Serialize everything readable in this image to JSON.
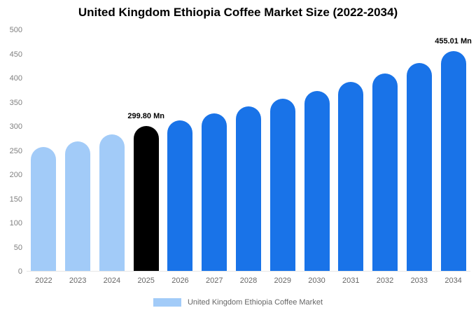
{
  "title": "United Kingdom Ethiopia Coffee Market Size (2022-2034)",
  "legend": {
    "label": "United Kingdom Ethiopia Coffee Market"
  },
  "colors": {
    "light": "#a2cbf8",
    "highlight": "#000000",
    "primary": "#1973e8",
    "axis_text": "#808080",
    "x_text": "#666666"
  },
  "chart_data": {
    "type": "bar",
    "title": "United Kingdom Ethiopia Coffee Market Size (2022-2034)",
    "xlabel": "",
    "ylabel": "",
    "ylim": [
      0,
      500
    ],
    "ytick_step": 50,
    "grid": false,
    "legend_position": "bottom",
    "categories": [
      "2022",
      "2023",
      "2024",
      "2025",
      "2026",
      "2027",
      "2028",
      "2029",
      "2030",
      "2031",
      "2032",
      "2033",
      "2034"
    ],
    "values": [
      256,
      268,
      283,
      299.8,
      312,
      326,
      341,
      357,
      373,
      391,
      409,
      430,
      455.01
    ],
    "bar_colors": [
      "light",
      "light",
      "light",
      "highlight",
      "primary",
      "primary",
      "primary",
      "primary",
      "primary",
      "primary",
      "primary",
      "primary",
      "primary"
    ],
    "data_labels": [
      null,
      null,
      null,
      "299.80 Mn",
      null,
      null,
      null,
      null,
      null,
      null,
      null,
      null,
      "455.01 Mn"
    ],
    "series_name": "United Kingdom Ethiopia Coffee Market"
  }
}
